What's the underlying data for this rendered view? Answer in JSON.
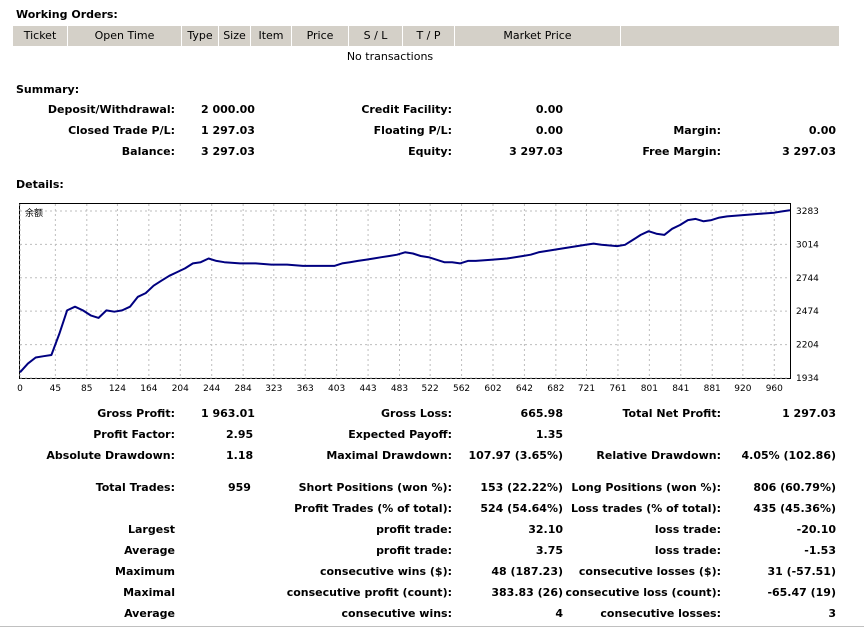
{
  "working_orders": {
    "title": "Working Orders:",
    "columns": [
      "Ticket",
      "Open Time",
      "Type",
      "Size",
      "Item",
      "Price",
      "S / L",
      "T / P",
      "Market Price",
      ""
    ],
    "empty_text": "No transactions"
  },
  "summary": {
    "title": "Summary:",
    "deposit_label": "Deposit/Withdrawal:",
    "deposit_value": "2 000.00",
    "credit_label": "Credit Facility:",
    "credit_value": "0.00",
    "closed_pl_label": "Closed Trade P/L:",
    "closed_pl_value": "1 297.03",
    "floating_pl_label": "Floating P/L:",
    "floating_pl_value": "0.00",
    "margin_label": "Margin:",
    "margin_value": "0.00",
    "balance_label": "Balance:",
    "balance_value": "3 297.03",
    "equity_label": "Equity:",
    "equity_value": "3 297.03",
    "free_margin_label": "Free Margin:",
    "free_margin_value": "3 297.03"
  },
  "details": {
    "title": "Details:",
    "gross_profit_label": "Gross Profit:",
    "gross_profit_value": "1 963.01",
    "gross_loss_label": "Gross Loss:",
    "gross_loss_value": "665.98",
    "total_net_label": "Total Net Profit:",
    "total_net_value": "1 297.03",
    "profit_factor_label": "Profit Factor:",
    "profit_factor_value": "2.95",
    "expected_payoff_label": "Expected Payoff:",
    "expected_payoff_value": "1.35",
    "abs_dd_label": "Absolute Drawdown:",
    "abs_dd_value": "1.18",
    "max_dd_label": "Maximal Drawdown:",
    "max_dd_value": "107.97 (3.65%)",
    "rel_dd_label": "Relative Drawdown:",
    "rel_dd_value": "4.05% (102.86)",
    "total_trades_label": "Total Trades:",
    "total_trades_value": "959",
    "short_label": "Short Positions (won %):",
    "short_value": "153 (22.22%)",
    "long_label": "Long Positions (won %):",
    "long_value": "806 (60.79%)",
    "profit_trades_label": "Profit Trades (% of total):",
    "profit_trades_value": "524 (54.64%)",
    "loss_trades_label": "Loss trades (% of total):",
    "loss_trades_value": "435 (45.36%)",
    "largest_label": "Largest",
    "largest_profit_label": "profit trade:",
    "largest_profit_value": "32.10",
    "largest_loss_label": "loss trade:",
    "largest_loss_value": "-20.10",
    "average_label": "Average",
    "average_profit_label": "profit trade:",
    "average_profit_value": "3.75",
    "average_loss_label": "loss trade:",
    "average_loss_value": "-1.53",
    "maximum_label": "Maximum",
    "max_cons_wins_label": "consecutive wins ($):",
    "max_cons_wins_value": "48 (187.23)",
    "max_cons_losses_label": "consecutive losses ($):",
    "max_cons_losses_value": "31 (-57.51)",
    "maximal_label": "Maximal",
    "maximal_cons_profit_label": "consecutive profit (count):",
    "maximal_cons_profit_value": "383.83 (26)",
    "maximal_cons_loss_label": "consecutive loss (count):",
    "maximal_cons_loss_value": "-65.47 (19)",
    "average2_label": "Average",
    "avg_cons_wins_label": "consecutive wins:",
    "avg_cons_wins_value": "4",
    "avg_cons_losses_label": "consecutive losses:",
    "avg_cons_losses_value": "3"
  },
  "chart_data": {
    "type": "line",
    "title": "余额",
    "line_color": "#000080",
    "grid": true,
    "grid_style": "dotted",
    "xlim": [
      0,
      980
    ],
    "ylim": [
      1934,
      3340
    ],
    "x_ticks": [
      0,
      45,
      85,
      124,
      164,
      204,
      244,
      284,
      323,
      363,
      403,
      443,
      483,
      522,
      562,
      602,
      642,
      682,
      721,
      761,
      801,
      841,
      881,
      920,
      960
    ],
    "y_ticks": [
      1934,
      2204,
      2474,
      2744,
      3014,
      3283
    ],
    "series": [
      {
        "x": [
          0,
          10,
          20,
          30,
          40,
          50,
          60,
          70,
          80,
          90,
          100,
          110,
          120,
          130,
          140,
          150,
          160,
          170,
          180,
          190,
          200,
          210,
          220,
          230,
          240,
          250,
          260,
          280,
          300,
          320,
          340,
          360,
          380,
          400,
          410,
          420,
          430,
          440,
          450,
          460,
          470,
          480,
          490,
          500,
          510,
          520,
          540,
          550,
          560,
          570,
          580,
          600,
          620,
          640,
          650,
          660,
          680,
          700,
          720,
          730,
          740,
          760,
          770,
          780,
          790,
          800,
          810,
          820,
          830,
          840,
          850,
          860,
          870,
          880,
          890,
          900,
          920,
          940,
          960,
          970,
          980
        ],
        "y": [
          1980,
          2050,
          2100,
          2110,
          2120,
          2290,
          2480,
          2510,
          2480,
          2440,
          2420,
          2480,
          2470,
          2480,
          2510,
          2590,
          2620,
          2680,
          2720,
          2760,
          2790,
          2820,
          2860,
          2870,
          2900,
          2880,
          2870,
          2860,
          2860,
          2850,
          2850,
          2840,
          2840,
          2840,
          2860,
          2870,
          2880,
          2890,
          2900,
          2910,
          2920,
          2930,
          2950,
          2940,
          2920,
          2910,
          2870,
          2870,
          2860,
          2880,
          2880,
          2890,
          2900,
          2920,
          2930,
          2950,
          2970,
          2990,
          3010,
          3020,
          3010,
          3000,
          3010,
          3050,
          3090,
          3120,
          3100,
          3090,
          3140,
          3170,
          3210,
          3220,
          3200,
          3210,
          3230,
          3240,
          3250,
          3260,
          3270,
          3280,
          3290
        ]
      }
    ]
  }
}
